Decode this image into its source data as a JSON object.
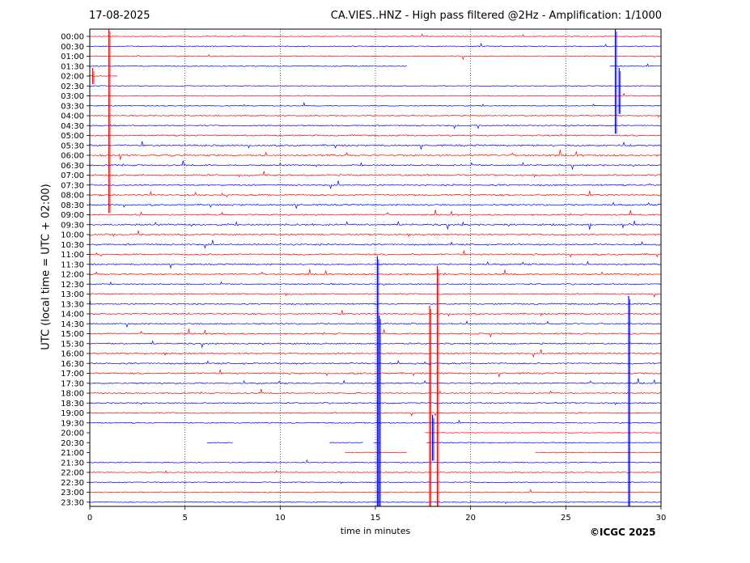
{
  "header": {
    "date": "17-08-2025",
    "station_title": "CA.VIES..HNZ - High pass filtered @2Hz - Amplification: 1/1000"
  },
  "copyright": "©ICGC 2025",
  "colors": {
    "odd_row": "#ff0000",
    "even_row": "#0000ff",
    "grid": "#000000"
  },
  "chart_data": {
    "type": "line",
    "title": "CA.VIES..HNZ - High pass filtered @2Hz - Amplification: 1/1000",
    "xlabel": "time in minutes",
    "ylabel": "UTC (local time = UTC + 02:00)",
    "xlim": [
      0,
      30
    ],
    "xticks": [
      0,
      5,
      10,
      15,
      20,
      25,
      30
    ],
    "grid_x": true,
    "rows": [
      "00:00",
      "00:30",
      "01:00",
      "01:30",
      "02:00",
      "02:30",
      "03:00",
      "03:30",
      "04:00",
      "04:30",
      "05:00",
      "05:30",
      "06:00",
      "06:30",
      "07:00",
      "07:30",
      "08:00",
      "08:30",
      "09:00",
      "09:30",
      "10:00",
      "10:30",
      "11:00",
      "11:30",
      "12:00",
      "12:30",
      "13:00",
      "13:30",
      "14:00",
      "14:30",
      "15:00",
      "15:30",
      "16:00",
      "16:30",
      "17:00",
      "17:30",
      "18:00",
      "18:30",
      "19:00",
      "19:30",
      "20:00",
      "20:30",
      "21:00",
      "21:30",
      "22:00",
      "22:30",
      "23:00",
      "23:30"
    ],
    "row_colors": [
      "red",
      "blue"
    ],
    "activity": [
      0.15,
      0.15,
      0.2,
      0.1,
      0.1,
      0.1,
      0.15,
      0.15,
      0.3,
      0.4,
      0.45,
      0.7,
      0.7,
      0.6,
      0.65,
      0.6,
      0.7,
      0.6,
      0.55,
      0.8,
      0.65,
      0.65,
      0.65,
      0.6,
      0.55,
      0.45,
      0.4,
      0.45,
      0.5,
      0.45,
      0.5,
      0.55,
      0.55,
      0.65,
      0.6,
      0.5,
      0.45,
      0.45,
      0.4,
      0.3,
      0.0,
      0.05,
      0.05,
      0.1,
      0.15,
      0.15,
      0.15,
      0.15
    ],
    "gaps": [
      {
        "row": "01:30",
        "from": 16.7,
        "to": 27.3
      },
      {
        "row": "02:00",
        "from": 1.5,
        "to": 30
      },
      {
        "row": "20:00",
        "from": 0,
        "to": 17.6
      },
      {
        "row": "20:30",
        "from": 0,
        "to": 6.1
      },
      {
        "row": "20:30",
        "from": 7.5,
        "to": 12.6
      },
      {
        "row": "20:30",
        "from": 14.4,
        "to": 14.9
      },
      {
        "row": "20:30",
        "from": 15.3,
        "to": 17.7
      },
      {
        "row": "21:00",
        "from": 0,
        "to": 13.4
      },
      {
        "row": "21:00",
        "from": 16.7,
        "to": 23.4
      }
    ],
    "events": [
      {
        "minute": 1.0,
        "from_row": "00:00",
        "to_row": "08:30",
        "color": "red"
      },
      {
        "minute": 0.15,
        "from_row": "02:00",
        "to_row": "02:00",
        "color": "red"
      },
      {
        "minute": 27.6,
        "from_row": "00:00",
        "to_row": "04:30",
        "color": "blue"
      },
      {
        "minute": 27.8,
        "from_row": "02:00",
        "to_row": "03:30",
        "color": "blue"
      },
      {
        "minute": 15.1,
        "from_row": "11:30",
        "to_row": "23:30",
        "color": "blue"
      },
      {
        "minute": 15.2,
        "from_row": "14:30",
        "to_row": "23:30",
        "color": "blue"
      },
      {
        "minute": 28.3,
        "from_row": "13:30",
        "to_row": "23:30",
        "color": "blue"
      },
      {
        "minute": 17.85,
        "from_row": "14:00",
        "to_row": "23:30",
        "color": "red"
      },
      {
        "minute": 18.25,
        "from_row": "12:00",
        "to_row": "23:30",
        "color": "red"
      },
      {
        "minute": 18.0,
        "from_row": "19:30",
        "to_row": "21:00",
        "color": "blue"
      }
    ]
  }
}
